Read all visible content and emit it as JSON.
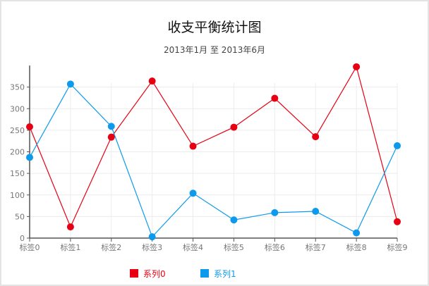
{
  "chart_data": {
    "type": "line",
    "title": "收支平衡统计图",
    "subtitle": "2013年1月 至 2013年6月",
    "categories": [
      "标签0",
      "标签1",
      "标签2",
      "标签3",
      "标签4",
      "标签5",
      "标签6",
      "标签7",
      "标签8",
      "标签9"
    ],
    "series": [
      {
        "name": "系列0",
        "color": "#e60012",
        "values": [
          258,
          26,
          234,
          364,
          213,
          257,
          324,
          235,
          397,
          38
        ]
      },
      {
        "name": "系列1",
        "color": "#0d9aed",
        "values": [
          187,
          357,
          259,
          3,
          104,
          42,
          59,
          62,
          12,
          214
        ]
      }
    ],
    "yticks": [
      0,
      50,
      100,
      150,
      200,
      250,
      300,
      350
    ],
    "ylim": [
      0,
      400
    ],
    "grid": true,
    "legend_position": "bottom"
  }
}
